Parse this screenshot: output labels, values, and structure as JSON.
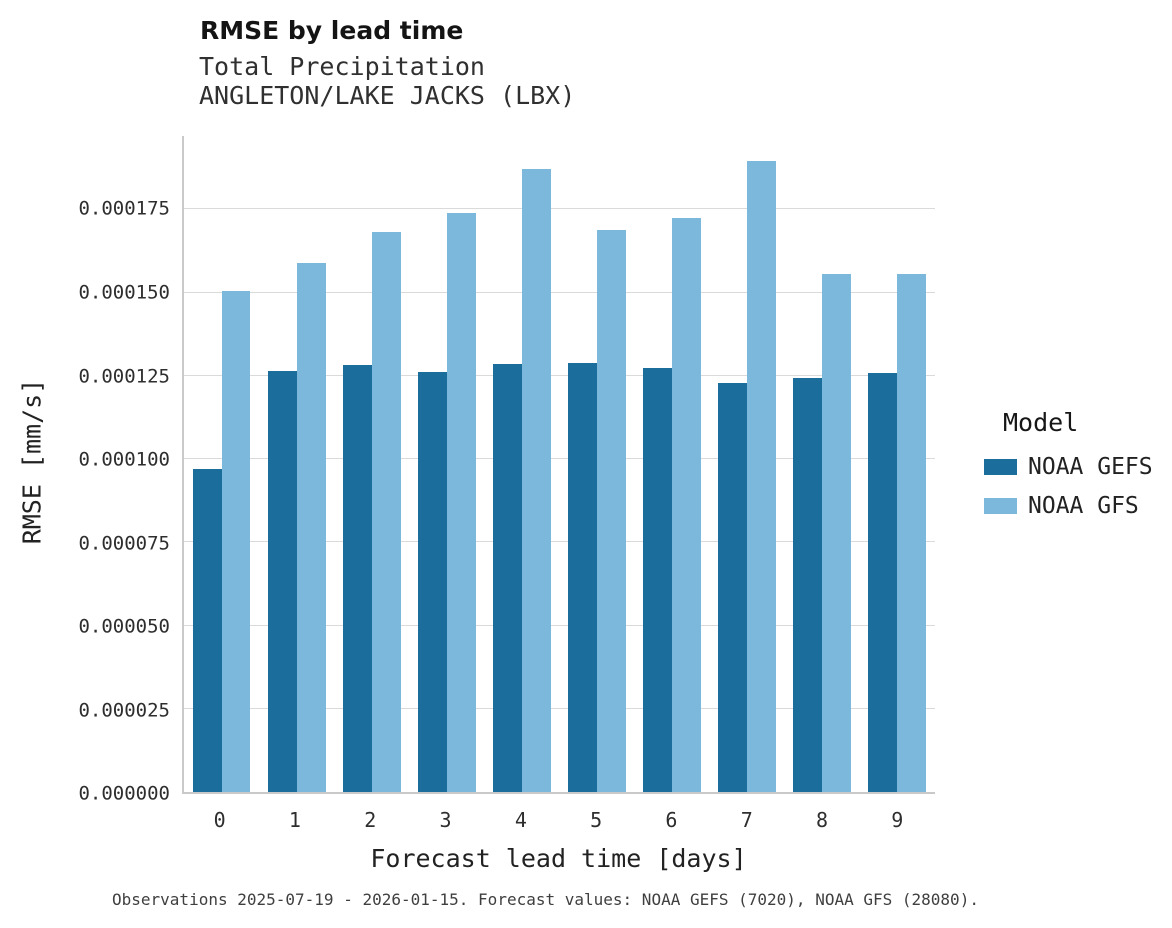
{
  "header": {
    "title": "RMSE by lead time",
    "subtitle1": "Total Precipitation",
    "subtitle2": "ANGLETON/LAKE JACKS (LBX)"
  },
  "axes": {
    "x_label": "Forecast lead time [days]",
    "y_label": "RMSE [mm/s]"
  },
  "legend": {
    "title": "Model",
    "entries": [
      {
        "label": "NOAA GEFS",
        "color": "#1b6d9c"
      },
      {
        "label": "NOAA GFS",
        "color": "#7cb8dc"
      }
    ]
  },
  "caption": "Observations 2025-07-19 - 2026-01-15. Forecast values: NOAA GEFS (7020), NOAA GFS (28080).",
  "chart_data": {
    "type": "bar",
    "title": "RMSE by lead time",
    "subtitle": "Total Precipitation — ANGLETON/LAKE JACKS (LBX)",
    "xlabel": "Forecast lead time [days]",
    "ylabel": "RMSE [mm/s]",
    "categories": [
      "0",
      "1",
      "2",
      "3",
      "4",
      "5",
      "6",
      "7",
      "8",
      "9"
    ],
    "series": [
      {
        "name": "NOAA GEFS",
        "color": "#1b6d9c",
        "values": [
          9.7e-05,
          0.0001263,
          0.0001283,
          0.000126,
          0.0001286,
          0.0001289,
          0.0001273,
          0.0001228,
          0.0001243,
          0.0001258
        ]
      },
      {
        "name": "NOAA GFS",
        "color": "#7cb8dc",
        "values": [
          0.0001505,
          0.0001589,
          0.0001682,
          0.0001739,
          0.0001872,
          0.0001687,
          0.0001724,
          0.0001896,
          0.0001556,
          0.0001557
        ]
      }
    ],
    "ylim": [
      0,
      0.000197
    ],
    "yticks": [
      0,
      2.5e-05,
      5e-05,
      7.5e-05,
      0.0001,
      0.000125,
      0.00015,
      0.000175
    ],
    "ytick_labels": [
      "0.000000",
      "0.000025",
      "0.000050",
      "0.000075",
      "0.000100",
      "0.000125",
      "0.000150",
      "0.000175"
    ],
    "grid": true,
    "legend_position": "right",
    "legend_title": "Model"
  }
}
